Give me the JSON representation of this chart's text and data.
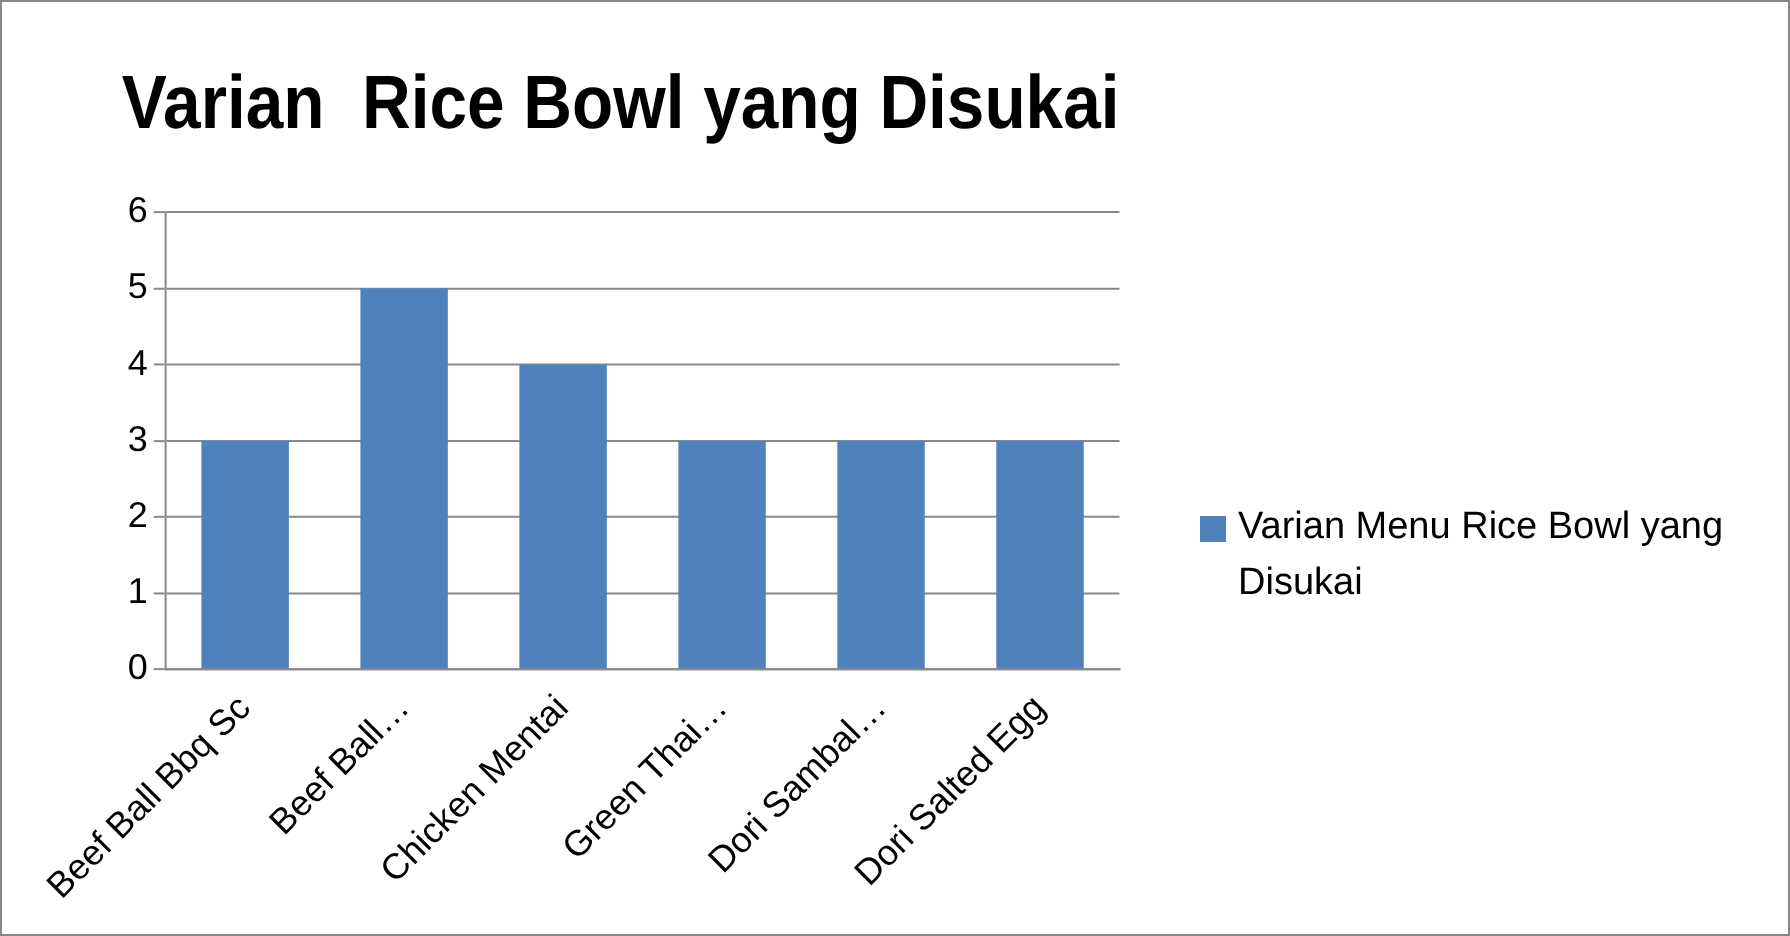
{
  "chart_data": {
    "type": "bar",
    "title": "Varian  Rice Bowl yang Disukai",
    "categories": [
      "Beef Ball Bbq Sc",
      "Beef Ball…",
      "Chicken Mentai",
      "Green Thai…",
      "Dori Sambal…",
      "Dori Salted Egg"
    ],
    "series": [
      {
        "name": "Varian Menu Rice Bowl yang Disukai",
        "color": "#4f81bd",
        "values": [
          3,
          5,
          4,
          3,
          3,
          3
        ]
      }
    ],
    "ylim": [
      0,
      6
    ],
    "yticks": [
      0,
      1,
      2,
      3,
      4,
      5,
      6
    ],
    "grid": "y",
    "legend": "right"
  }
}
